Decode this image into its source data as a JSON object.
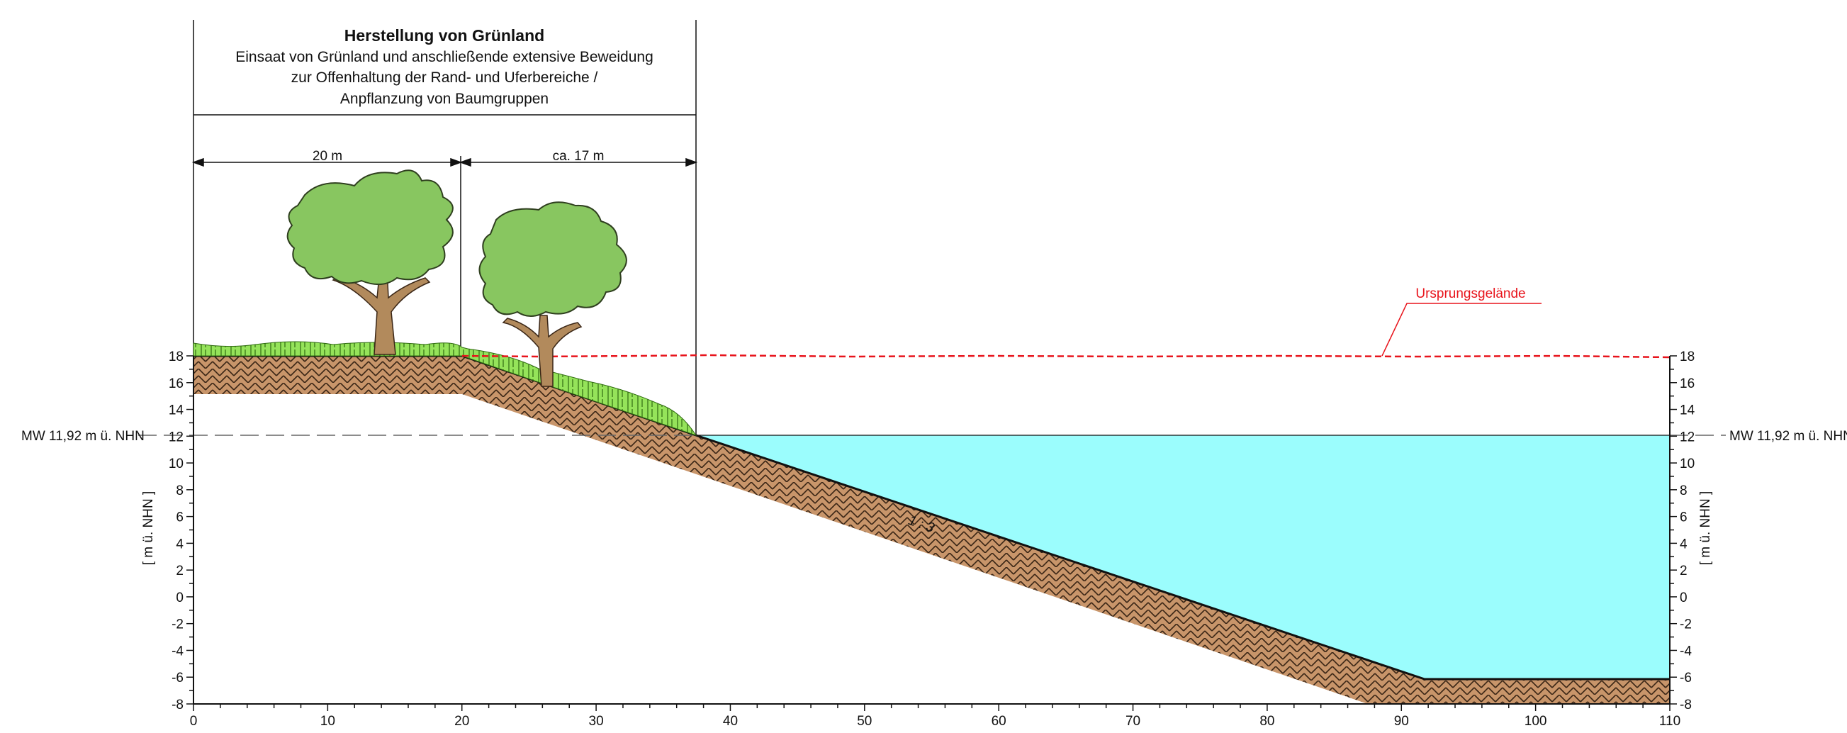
{
  "header": {
    "title": "Herstellung von Grünland",
    "lines": [
      "Einsaat von Grünland und anschließende extensive Beweidung",
      "zur Offenhaltung der Rand- und Uferbereiche /",
      "Anpflanzung von Baumgruppen"
    ]
  },
  "dimensions": {
    "left": "20 m",
    "right": "ca. 17 m"
  },
  "water_level": {
    "label_left": "MW 11,92 m ü. NHN",
    "label_right": "MW 11,92 m ü. NHN",
    "value": 11.92
  },
  "original_terrain": {
    "label": "Ursprungsgelände"
  },
  "slope_label": "1 : 3",
  "axes": {
    "y_label_left": "[ m ü. NHN ]",
    "y_label_right": "[ m ü. NHN ]",
    "y_ticks": [
      "-8",
      "-6",
      "-4",
      "-2",
      "0",
      "2",
      "4",
      "6",
      "8",
      "10",
      "12",
      "14",
      "16",
      "18"
    ],
    "x_ticks": [
      "0",
      "10",
      "20",
      "30",
      "40",
      "50",
      "60",
      "70",
      "80",
      "90",
      "100",
      "110"
    ]
  },
  "colors": {
    "water": "#9bfdfd",
    "soil": "#c8956a",
    "grass": "#95e35a",
    "tree_canopy": "#88c660",
    "trunk": "#b28a5c",
    "terrain_line": "#e8141c"
  },
  "icons": [
    "tree-icon",
    "tree-icon"
  ]
}
